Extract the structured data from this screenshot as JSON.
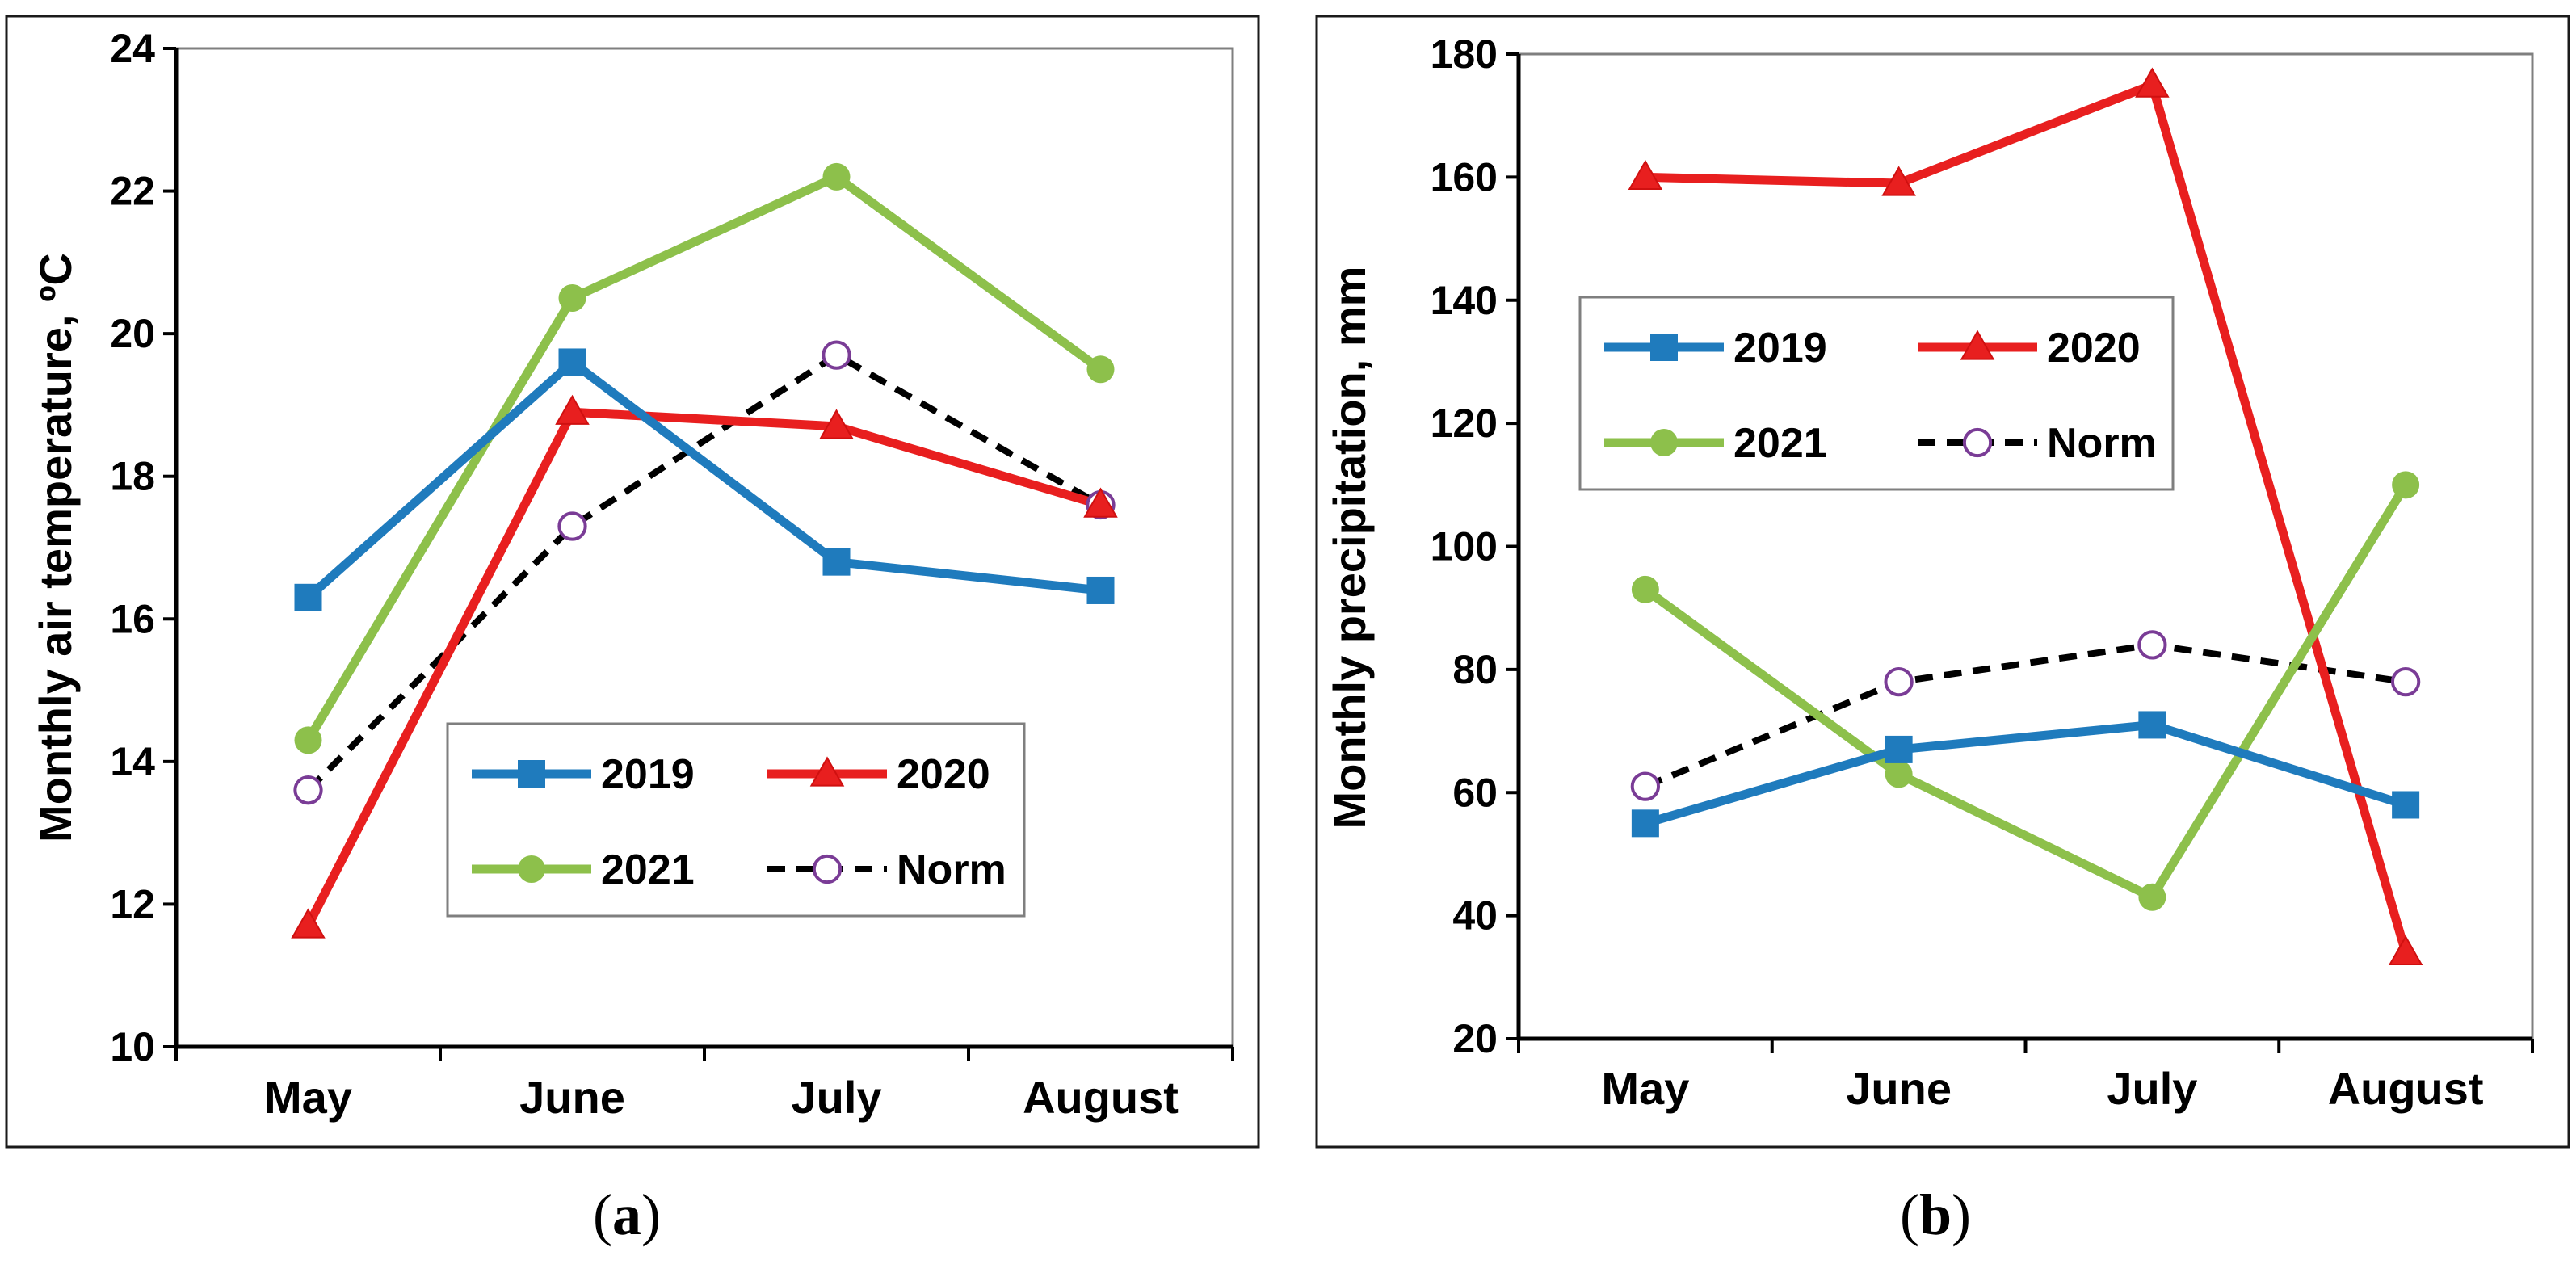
{
  "colors": {
    "2019": "#1f7bbd",
    "2020": "#e81f1f",
    "2021": "#8dc04b",
    "Norm": "#000000",
    "norm_marker": "#7a3c96",
    "frame": "#7f7f7f"
  },
  "chart_data": [
    {
      "type": "line",
      "panel": "(a)",
      "panel_letter": "a",
      "title": "",
      "xlabel": "",
      "ylabel": "Monthly air temperature, ºC",
      "categories": [
        "May",
        "June",
        "July",
        "August"
      ],
      "ylim": [
        10,
        24
      ],
      "yticks": [
        10,
        12,
        14,
        16,
        18,
        20,
        22,
        24
      ],
      "grid": false,
      "legend_position": "bottom-right",
      "series": [
        {
          "name": "2019",
          "values": [
            16.3,
            19.6,
            16.8,
            16.4
          ],
          "marker": "square",
          "line": "solid"
        },
        {
          "name": "2020",
          "values": [
            11.7,
            18.9,
            18.7,
            17.6
          ],
          "marker": "triangle",
          "line": "solid"
        },
        {
          "name": "2021",
          "values": [
            14.3,
            20.5,
            22.2,
            19.5
          ],
          "marker": "circle",
          "line": "solid"
        },
        {
          "name": "Norm",
          "values": [
            13.6,
            17.3,
            19.7,
            17.6
          ],
          "marker": "open-circle",
          "line": "dashed"
        }
      ]
    },
    {
      "type": "line",
      "panel": "(b)",
      "panel_letter": "b",
      "title": "",
      "xlabel": "",
      "ylabel": "Monthly precipitation, mm",
      "categories": [
        "May",
        "June",
        "July",
        "August"
      ],
      "ylim": [
        20,
        180
      ],
      "yticks": [
        20,
        40,
        60,
        80,
        100,
        120,
        140,
        160,
        180
      ],
      "grid": false,
      "legend_position": "upper-left",
      "series": [
        {
          "name": "2019",
          "values": [
            55,
            67,
            71,
            58
          ],
          "marker": "square",
          "line": "solid"
        },
        {
          "name": "2020",
          "values": [
            160,
            159,
            175,
            34
          ],
          "marker": "triangle",
          "line": "solid"
        },
        {
          "name": "2021",
          "values": [
            93,
            63,
            43,
            110
          ],
          "marker": "circle",
          "line": "solid"
        },
        {
          "name": "Norm",
          "values": [
            61,
            78,
            84,
            78
          ],
          "marker": "open-circle",
          "line": "dashed"
        }
      ]
    }
  ]
}
